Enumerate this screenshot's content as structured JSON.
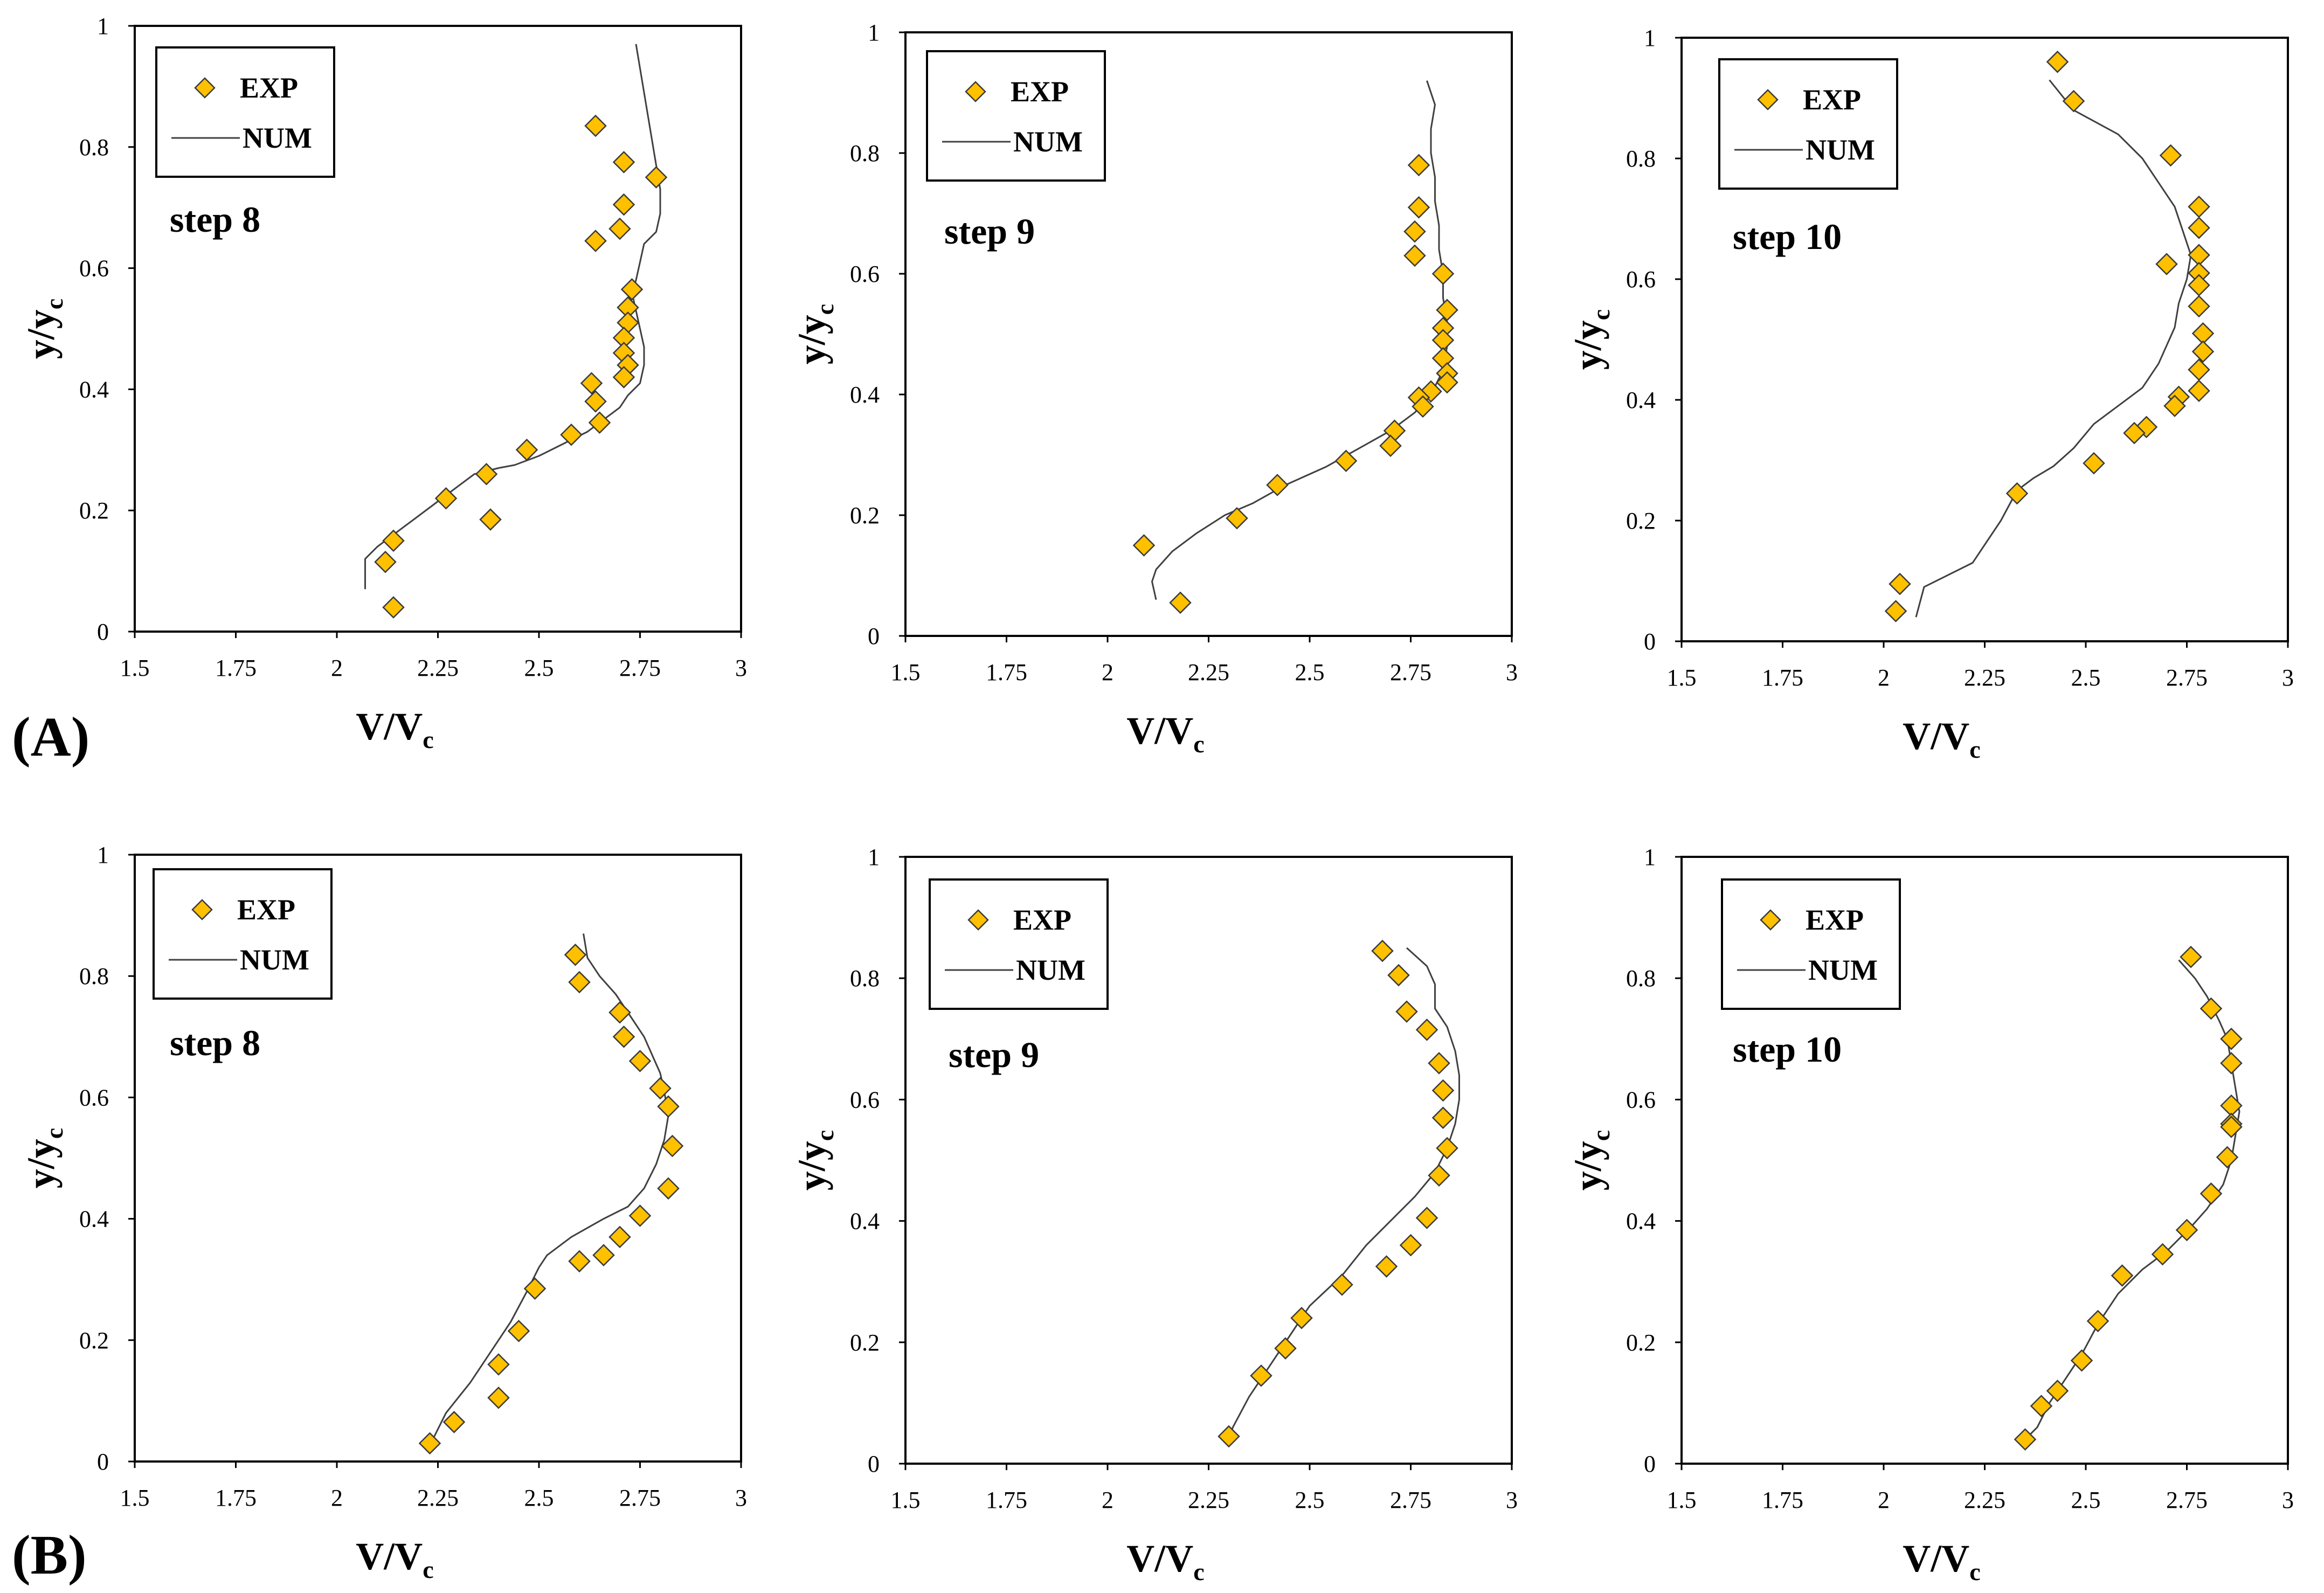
{
  "figure": {
    "row_labels": [
      "(A)",
      "(B)"
    ],
    "colors": {
      "marker_fill": "#FFC000",
      "marker_stroke": "#3a3a3a",
      "line": "#404040",
      "frame": "#000000"
    }
  },
  "chart_data": [
    {
      "type": "scatter",
      "row": "(A)",
      "annotation": "step 8",
      "xlabel": "V/V",
      "xlabel_sub": "c",
      "ylabel": "y/y",
      "ylabel_sub": "c",
      "xlim": [
        1.5,
        3
      ],
      "ylim": [
        0,
        1
      ],
      "xticks": [
        1.5,
        1.75,
        2,
        2.25,
        2.5,
        2.75,
        3
      ],
      "xtick_labels": [
        "1.5",
        "1.75",
        "2",
        "2.25",
        "2.5",
        "2.75",
        "3"
      ],
      "yticks": [
        0,
        0.2,
        0.4,
        0.6,
        0.8,
        1
      ],
      "ytick_labels": [
        "0",
        "0.2",
        "0.4",
        "0.6",
        "0.8",
        "1"
      ],
      "legend": [
        "EXP",
        "NUM"
      ],
      "series": [
        {
          "name": "EXP",
          "kind": "markers",
          "x": [
            2.64,
            2.71,
            2.79,
            2.71,
            2.7,
            2.64,
            2.73,
            2.72,
            2.72,
            2.71,
            2.71,
            2.72,
            2.71,
            2.63,
            2.64,
            2.65,
            2.58,
            2.47,
            2.37,
            2.27,
            2.38,
            2.14,
            2.12,
            2.14
          ],
          "y": [
            0.835,
            0.775,
            0.75,
            0.705,
            0.665,
            0.645,
            0.565,
            0.535,
            0.51,
            0.485,
            0.46,
            0.44,
            0.42,
            0.41,
            0.38,
            0.345,
            0.325,
            0.3,
            0.26,
            0.22,
            0.185,
            0.15,
            0.115,
            0.04
          ]
        },
        {
          "name": "NUM",
          "kind": "line",
          "x": [
            2.74,
            2.75,
            2.76,
            2.77,
            2.78,
            2.79,
            2.8,
            2.8,
            2.79,
            2.76,
            2.75,
            2.74,
            2.73,
            2.74,
            2.75,
            2.76,
            2.76,
            2.75,
            2.72,
            2.7,
            2.66,
            2.62,
            2.56,
            2.5,
            2.44,
            2.4,
            2.34,
            2.3,
            2.24,
            2.18,
            2.1,
            2.07,
            2.07
          ],
          "y": [
            0.97,
            0.93,
            0.89,
            0.85,
            0.81,
            0.77,
            0.73,
            0.69,
            0.66,
            0.64,
            0.61,
            0.58,
            0.56,
            0.53,
            0.5,
            0.47,
            0.44,
            0.41,
            0.39,
            0.37,
            0.35,
            0.33,
            0.31,
            0.29,
            0.275,
            0.27,
            0.26,
            0.24,
            0.21,
            0.18,
            0.14,
            0.12,
            0.07
          ]
        }
      ]
    },
    {
      "type": "scatter",
      "row": "(A)",
      "annotation": "step 9",
      "xlabel": "V/V",
      "xlabel_sub": "c",
      "ylabel": "y/y",
      "ylabel_sub": "c",
      "xlim": [
        1.5,
        3
      ],
      "ylim": [
        0,
        1
      ],
      "xticks": [
        1.5,
        1.75,
        2,
        2.25,
        2.5,
        2.75,
        3
      ],
      "xtick_labels": [
        "1.5",
        "1.75",
        "2",
        "2.25",
        "2.5",
        "2.75",
        "3"
      ],
      "yticks": [
        0,
        0.2,
        0.4,
        0.6,
        0.8,
        1
      ],
      "ytick_labels": [
        "0",
        "0.2",
        "0.4",
        "0.6",
        "0.8",
        "1"
      ],
      "legend": [
        "EXP",
        "NUM"
      ],
      "series": [
        {
          "name": "EXP",
          "kind": "markers",
          "x": [
            2.77,
            2.77,
            2.76,
            2.76,
            2.83,
            2.84,
            2.83,
            2.83,
            2.83,
            2.84,
            2.84,
            2.8,
            2.77,
            2.78,
            2.71,
            2.7,
            2.59,
            2.42,
            2.32,
            2.09,
            2.18
          ],
          "y": [
            0.78,
            0.71,
            0.67,
            0.63,
            0.6,
            0.54,
            0.51,
            0.49,
            0.46,
            0.435,
            0.42,
            0.405,
            0.395,
            0.38,
            0.34,
            0.315,
            0.29,
            0.25,
            0.195,
            0.15,
            0.055
          ]
        },
        {
          "name": "NUM",
          "kind": "line",
          "x": [
            2.79,
            2.81,
            2.8,
            2.8,
            2.81,
            2.81,
            2.82,
            2.82,
            2.83,
            2.83,
            2.84,
            2.84,
            2.83,
            2.8,
            2.76,
            2.7,
            2.62,
            2.54,
            2.44,
            2.36,
            2.29,
            2.22,
            2.16,
            2.12,
            2.11,
            2.12
          ],
          "y": [
            0.92,
            0.88,
            0.84,
            0.8,
            0.76,
            0.72,
            0.68,
            0.64,
            0.6,
            0.56,
            0.52,
            0.48,
            0.44,
            0.4,
            0.37,
            0.34,
            0.31,
            0.28,
            0.25,
            0.22,
            0.2,
            0.17,
            0.14,
            0.11,
            0.09,
            0.06
          ]
        }
      ]
    },
    {
      "type": "scatter",
      "row": "(A)",
      "annotation": "step 10",
      "xlabel": "V/V",
      "xlabel_sub": "c",
      "ylabel": "y/y",
      "ylabel_sub": "c",
      "xlim": [
        1.5,
        3
      ],
      "ylim": [
        0,
        1
      ],
      "xticks": [
        1.5,
        1.75,
        2,
        2.25,
        2.5,
        2.75,
        3
      ],
      "xtick_labels": [
        "1.5",
        "1.75",
        "2",
        "2.25",
        "2.5",
        "2.75",
        "3"
      ],
      "yticks": [
        0,
        0.2,
        0.4,
        0.6,
        0.8,
        1
      ],
      "ytick_labels": [
        "0",
        "0.2",
        "0.4",
        "0.6",
        "0.8",
        "1"
      ],
      "legend": [
        "EXP",
        "NUM"
      ],
      "series": [
        {
          "name": "EXP",
          "kind": "markers",
          "x": [
            2.43,
            2.47,
            2.71,
            2.78,
            2.78,
            2.78,
            2.7,
            2.78,
            2.78,
            2.78,
            2.79,
            2.79,
            2.78,
            2.78,
            2.73,
            2.72,
            2.65,
            2.62,
            2.52,
            2.33,
            2.04,
            2.03
          ],
          "y": [
            0.96,
            0.895,
            0.805,
            0.72,
            0.685,
            0.64,
            0.625,
            0.61,
            0.59,
            0.555,
            0.51,
            0.48,
            0.45,
            0.415,
            0.405,
            0.39,
            0.355,
            0.345,
            0.295,
            0.245,
            0.095,
            0.05
          ]
        },
        {
          "name": "NUM",
          "kind": "line",
          "x": [
            2.41,
            2.47,
            2.58,
            2.64,
            2.68,
            2.72,
            2.74,
            2.76,
            2.75,
            2.73,
            2.72,
            2.7,
            2.68,
            2.64,
            2.58,
            2.52,
            2.47,
            2.42,
            2.37,
            2.33,
            2.29,
            2.22,
            2.1,
            2.08
          ],
          "y": [
            0.93,
            0.88,
            0.84,
            0.8,
            0.76,
            0.72,
            0.68,
            0.64,
            0.6,
            0.56,
            0.52,
            0.49,
            0.46,
            0.42,
            0.39,
            0.36,
            0.32,
            0.29,
            0.27,
            0.25,
            0.2,
            0.13,
            0.09,
            0.04
          ]
        }
      ]
    },
    {
      "type": "scatter",
      "row": "(B)",
      "annotation": "step 8",
      "xlabel": "V/V",
      "xlabel_sub": "c",
      "ylabel": "y/y",
      "ylabel_sub": "c",
      "xlim": [
        1.5,
        3
      ],
      "ylim": [
        0,
        1
      ],
      "xticks": [
        1.5,
        1.75,
        2,
        2.25,
        2.5,
        2.75,
        3
      ],
      "xtick_labels": [
        "1.5",
        "1.75",
        "2",
        "2.25",
        "2.5",
        "2.75",
        "3"
      ],
      "yticks": [
        0,
        0.2,
        0.4,
        0.6,
        0.8,
        1
      ],
      "ytick_labels": [
        "0",
        "0.2",
        "0.4",
        "0.6",
        "0.8",
        "1"
      ],
      "legend": [
        "EXP",
        "NUM"
      ],
      "series": [
        {
          "name": "EXP",
          "kind": "markers",
          "x": [
            2.59,
            2.6,
            2.7,
            2.71,
            2.75,
            2.8,
            2.82,
            2.83,
            2.82,
            2.75,
            2.7,
            2.66,
            2.6,
            2.49,
            2.45,
            2.4,
            2.4,
            2.29,
            2.23
          ],
          "y": [
            0.835,
            0.79,
            0.74,
            0.7,
            0.66,
            0.615,
            0.585,
            0.52,
            0.45,
            0.405,
            0.37,
            0.34,
            0.33,
            0.285,
            0.215,
            0.16,
            0.105,
            0.065,
            0.03
          ]
        },
        {
          "name": "NUM",
          "kind": "line",
          "x": [
            2.61,
            2.62,
            2.65,
            2.69,
            2.73,
            2.76,
            2.78,
            2.8,
            2.81,
            2.82,
            2.81,
            2.79,
            2.76,
            2.72,
            2.66,
            2.58,
            2.52,
            2.5,
            2.47,
            2.43,
            2.38,
            2.33,
            2.27,
            2.24
          ],
          "y": [
            0.87,
            0.83,
            0.8,
            0.77,
            0.73,
            0.7,
            0.67,
            0.64,
            0.61,
            0.57,
            0.53,
            0.49,
            0.45,
            0.42,
            0.4,
            0.37,
            0.34,
            0.32,
            0.28,
            0.23,
            0.18,
            0.13,
            0.08,
            0.04
          ]
        }
      ]
    },
    {
      "type": "scatter",
      "row": "(B)",
      "annotation": "step 9",
      "xlabel": "V/V",
      "xlabel_sub": "c",
      "ylabel": "y/y",
      "ylabel_sub": "c",
      "xlim": [
        1.5,
        3
      ],
      "ylim": [
        0,
        1
      ],
      "xticks": [
        1.5,
        1.75,
        2,
        2.25,
        2.5,
        2.75,
        3
      ],
      "xtick_labels": [
        "1.5",
        "1.75",
        "2",
        "2.25",
        "2.5",
        "2.75",
        "3"
      ],
      "yticks": [
        0,
        0.2,
        0.4,
        0.6,
        0.8,
        1
      ],
      "ytick_labels": [
        "0",
        "0.2",
        "0.4",
        "0.6",
        "0.8",
        "1"
      ],
      "legend": [
        "EXP",
        "NUM"
      ],
      "series": [
        {
          "name": "EXP",
          "kind": "markers",
          "x": [
            2.68,
            2.72,
            2.74,
            2.79,
            2.82,
            2.83,
            2.83,
            2.84,
            2.82,
            2.79,
            2.75,
            2.69,
            2.58,
            2.48,
            2.44,
            2.38,
            2.3
          ],
          "y": [
            0.845,
            0.805,
            0.745,
            0.715,
            0.66,
            0.615,
            0.57,
            0.52,
            0.475,
            0.405,
            0.36,
            0.325,
            0.295,
            0.24,
            0.19,
            0.145,
            0.045
          ]
        },
        {
          "name": "NUM",
          "kind": "line",
          "x": [
            2.74,
            2.79,
            2.81,
            2.81,
            2.84,
            2.86,
            2.87,
            2.87,
            2.86,
            2.84,
            2.81,
            2.76,
            2.7,
            2.64,
            2.58,
            2.5,
            2.45,
            2.4,
            2.35,
            2.31,
            2.3
          ],
          "y": [
            0.85,
            0.82,
            0.79,
            0.75,
            0.72,
            0.68,
            0.64,
            0.6,
            0.56,
            0.52,
            0.48,
            0.44,
            0.4,
            0.36,
            0.31,
            0.26,
            0.21,
            0.16,
            0.11,
            0.06,
            0.04
          ]
        }
      ]
    },
    {
      "type": "scatter",
      "row": "(B)",
      "annotation": "step 10",
      "xlabel": "V/V",
      "xlabel_sub": "c",
      "ylabel": "y/y",
      "ylabel_sub": "c",
      "xlim": [
        1.5,
        3
      ],
      "ylim": [
        0,
        1
      ],
      "xticks": [
        1.5,
        1.75,
        2,
        2.25,
        2.5,
        2.75,
        3
      ],
      "xtick_labels": [
        "1.5",
        "1.75",
        "2",
        "2.25",
        "2.5",
        "2.75",
        "3"
      ],
      "yticks": [
        0,
        0.2,
        0.4,
        0.6,
        0.8,
        1
      ],
      "ytick_labels": [
        "0",
        "0.2",
        "0.4",
        "0.6",
        "0.8",
        "1"
      ],
      "legend": [
        "EXP",
        "NUM"
      ],
      "series": [
        {
          "name": "EXP",
          "kind": "markers",
          "x": [
            2.76,
            2.81,
            2.86,
            2.86,
            2.86,
            2.86,
            2.86,
            2.85,
            2.81,
            2.75,
            2.69,
            2.59,
            2.53,
            2.49,
            2.43,
            2.39,
            2.35
          ],
          "y": [
            0.835,
            0.75,
            0.7,
            0.66,
            0.59,
            0.56,
            0.555,
            0.505,
            0.445,
            0.385,
            0.345,
            0.31,
            0.235,
            0.17,
            0.12,
            0.095,
            0.04
          ]
        },
        {
          "name": "NUM",
          "kind": "line",
          "x": [
            2.73,
            2.77,
            2.8,
            2.83,
            2.85,
            2.86,
            2.87,
            2.88,
            2.87,
            2.86,
            2.84,
            2.8,
            2.76,
            2.7,
            2.64,
            2.58,
            2.53,
            2.49,
            2.45,
            2.41,
            2.38,
            2.35
          ],
          "y": [
            0.83,
            0.8,
            0.77,
            0.73,
            0.7,
            0.66,
            0.62,
            0.58,
            0.54,
            0.5,
            0.46,
            0.42,
            0.39,
            0.35,
            0.32,
            0.28,
            0.23,
            0.18,
            0.14,
            0.1,
            0.06,
            0.04
          ]
        }
      ]
    }
  ]
}
